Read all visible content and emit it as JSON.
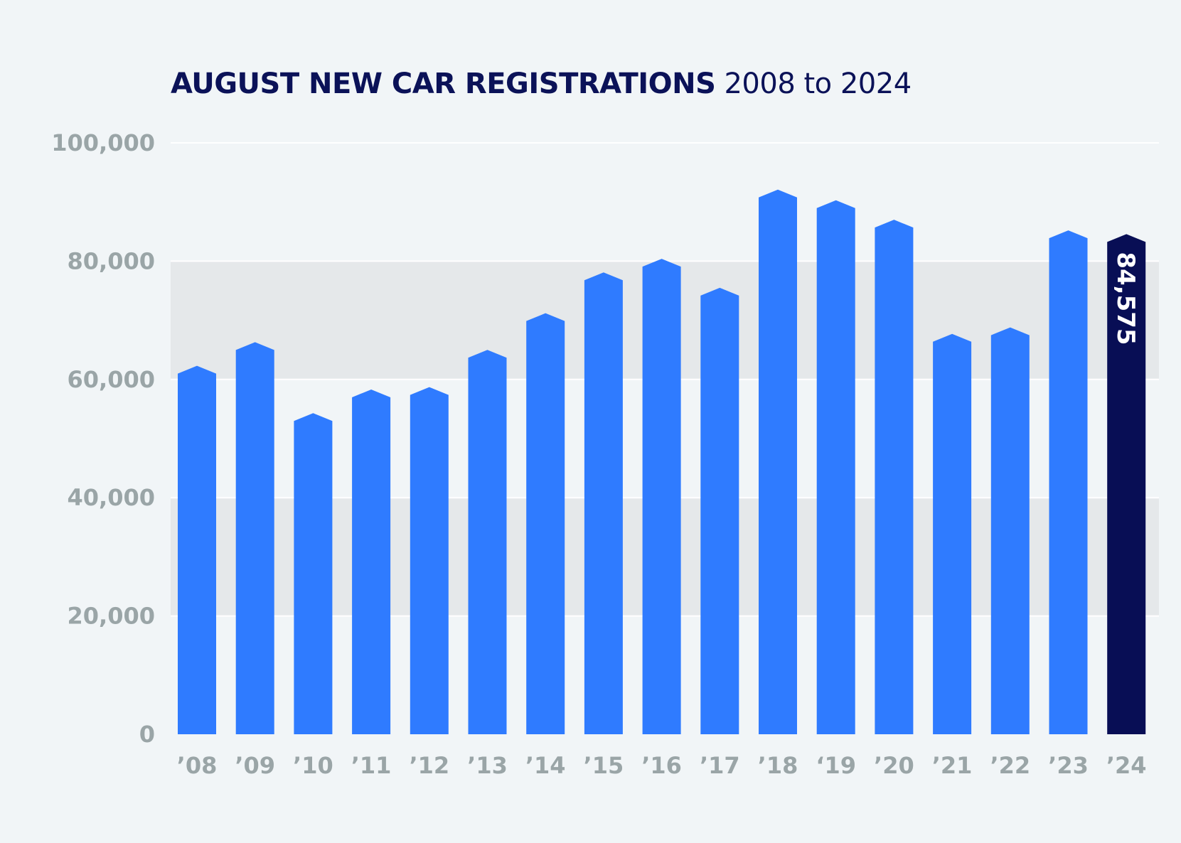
{
  "title": {
    "main": "AUGUST NEW CAR REGISTRATIONS",
    "sub": "2008 to 2024"
  },
  "colors": {
    "background": "#f1f5f7",
    "band": "#e5e8ea",
    "gridline": "#ffffff",
    "bar": "#2f7bff",
    "highlight_bar": "#080e55",
    "title": "#0b1258",
    "tick_label": "#9aa5a7"
  },
  "chart_data": {
    "type": "bar",
    "categories": [
      "’08",
      "’09",
      "’10",
      "’11",
      "’12",
      "’13",
      "’14",
      "’15",
      "’16",
      "’17",
      "’18",
      "‘19",
      "’20",
      "’21",
      "’22",
      "’23",
      "’24"
    ],
    "values": [
      62300,
      66300,
      54300,
      58300,
      58700,
      65000,
      71200,
      78100,
      80400,
      75500,
      92100,
      90300,
      87000,
      67700,
      68800,
      85200,
      84575
    ],
    "highlight_index": 16,
    "data_labels": [
      {
        "index": 16,
        "text": "84,575"
      }
    ],
    "y_ticks": [
      0,
      20000,
      40000,
      60000,
      80000,
      100000
    ],
    "y_tick_labels": [
      "0",
      "20,000",
      "40,000",
      "60,000",
      "80,000",
      "100,000"
    ],
    "ylim": [
      0,
      100000
    ],
    "shaded_bands": [
      [
        20000,
        40000
      ],
      [
        60000,
        80000
      ]
    ],
    "grid": true,
    "legend": "none",
    "xlabel": "",
    "ylabel": ""
  }
}
